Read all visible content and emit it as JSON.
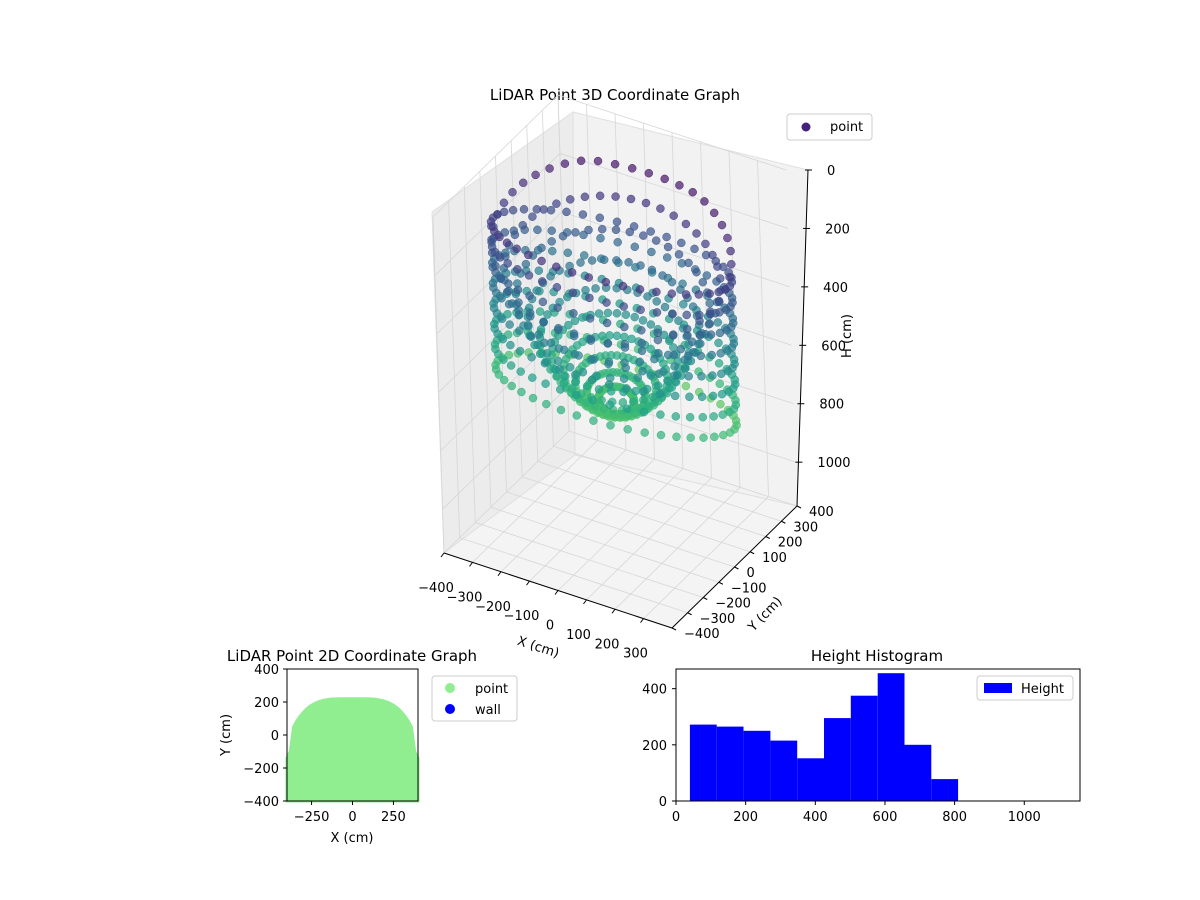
{
  "chart_data": [
    {
      "type": "scatter",
      "projection": "3d",
      "title": "LiDAR Point 3D Coordinate Graph",
      "xlabel": "X (cm)",
      "ylabel": "Y (cm)",
      "zlabel": "H (cm)",
      "xlim": [
        -400,
        400
      ],
      "ylim": [
        -400,
        400
      ],
      "zlim": [
        1150,
        0
      ],
      "z_inverted": true,
      "x_ticks": [
        "−400",
        "−300",
        "−200",
        "−100",
        "0",
        "100",
        "200",
        "300"
      ],
      "y_ticks": [
        "−400",
        "−300",
        "−200",
        "−100",
        "0",
        "100",
        "200",
        "300",
        "400"
      ],
      "z_ticks": [
        "0",
        "200",
        "400",
        "600",
        "800",
        "1000"
      ],
      "colormap": "viridis",
      "color_by": "H (cm)",
      "legend": "top-right",
      "series": [
        {
          "name": "point",
          "legend_color": "#46237a",
          "description": "Points sampled on a bowl-shaped surface: outer rim near H≈100–400 cm at radius≈400 cm, descending to a center near H≈600–700 cm; front wall drops down to H≈900–1000 cm.",
          "surface_samples": [
            {
              "radius": 400,
              "h_min": 120,
              "h_max": 600
            },
            {
              "radius": 300,
              "h_min": 400,
              "h_max": 700
            },
            {
              "radius": 150,
              "h_min": 550,
              "h_max": 800
            },
            {
              "radius": 0,
              "h_min": 650,
              "h_max": 950
            }
          ]
        }
      ],
      "grid": true
    },
    {
      "type": "scatter",
      "title": "LiDAR Point 2D Coordinate Graph",
      "xlabel": "X (cm)",
      "ylabel": "Y (cm)",
      "xlim": [
        -400,
        400
      ],
      "ylim": [
        -400,
        400
      ],
      "x_ticks": [
        "−250",
        "0",
        "250"
      ],
      "y_ticks": [
        "400",
        "200",
        "0",
        "−200",
        "−400"
      ],
      "legend": "outside-right",
      "series": [
        {
          "name": "point",
          "color": "#90ee90",
          "region": "filled half-disc: x from -400 to 400, y from -400 up to an arched top reaching 220 at x≈0"
        },
        {
          "name": "wall",
          "color": "#0000ff",
          "region": "none visible"
        }
      ]
    },
    {
      "type": "bar",
      "subtype": "histogram",
      "title": "Height Histogram",
      "xlabel": "",
      "ylabel": "",
      "xlim": [
        0,
        1160
      ],
      "ylim": [
        0,
        470
      ],
      "x_ticks": [
        "0",
        "200",
        "400",
        "600",
        "800",
        "1000"
      ],
      "y_ticks": [
        "0",
        "200",
        "400"
      ],
      "legend": "top-right",
      "series": [
        {
          "name": "Height",
          "color": "#0000ff",
          "bin_edges": [
            40,
            117,
            194,
            271,
            348,
            425,
            502,
            579,
            656,
            733,
            810
          ],
          "values": [
            272,
            265,
            250,
            215,
            152,
            295,
            375,
            455,
            200,
            78
          ]
        }
      ]
    }
  ]
}
